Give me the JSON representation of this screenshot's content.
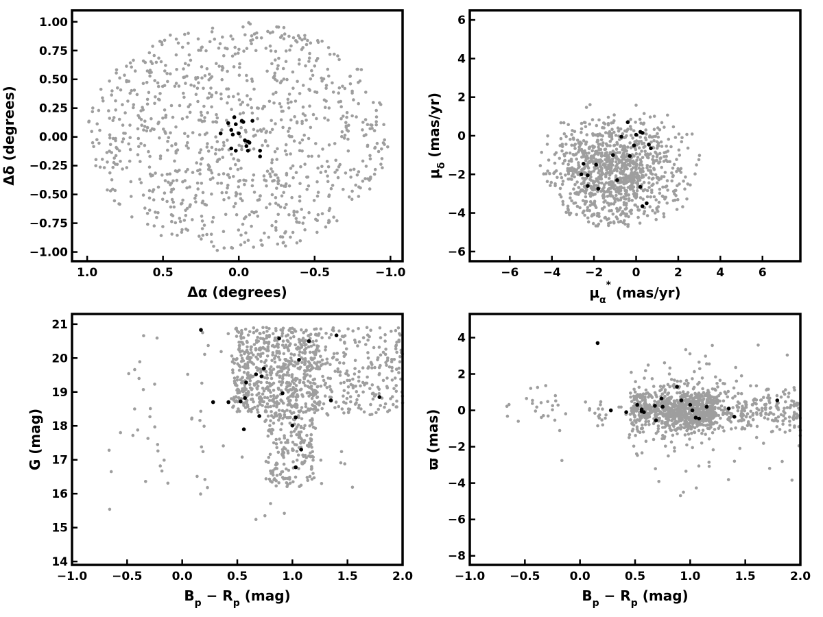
{
  "colors": {
    "field": "#9e9e9e",
    "members": "#000000"
  },
  "chart_data": [
    {
      "type": "scatter",
      "id": "sky",
      "xlabel": "Δα (degrees)",
      "ylabel": "Δδ (degrees)",
      "xlim": [
        1.1,
        -1.08
      ],
      "ylim": [
        -1.08,
        1.1
      ],
      "xticks": [
        "1.0",
        "0.5",
        "0.0",
        "−0.5",
        "−1.0"
      ],
      "xtick_values": [
        1.0,
        0.5,
        0.0,
        -0.5,
        -1.0
      ],
      "yticks": [
        "−1.00",
        "−0.75",
        "−0.50",
        "−0.25",
        "0.00",
        "0.25",
        "0.50",
        "0.75",
        "1.00"
      ],
      "ytick_values": [
        -1.0,
        -0.75,
        -0.5,
        -0.25,
        0.0,
        0.25,
        0.5,
        0.75,
        1.0
      ],
      "grid": false,
      "series": [
        {
          "role": "field",
          "color": "#9e9e9e",
          "points": []
        },
        {
          "role": "members",
          "color": "#000000",
          "points": [
            [
              0.12,
              0.03
            ],
            [
              0.07,
              0.12
            ],
            [
              0.05,
              0.06
            ],
            [
              0.04,
              0.02
            ],
            [
              0.03,
              0.17
            ],
            [
              0.02,
              0.11
            ],
            [
              0.0,
              0.03
            ],
            [
              -0.02,
              0.14
            ],
            [
              -0.03,
              0.13
            ],
            [
              -0.04,
              -0.03
            ],
            [
              -0.05,
              -0.08
            ],
            [
              -0.06,
              -0.12
            ],
            [
              -0.07,
              -0.05
            ],
            [
              -0.09,
              0.14
            ],
            [
              -0.14,
              -0.12
            ],
            [
              -0.14,
              -0.17
            ],
            [
              0.05,
              -0.1
            ],
            [
              0.02,
              -0.12
            ],
            [
              -0.06,
              -0.04
            ]
          ]
        }
      ]
    },
    {
      "type": "scatter",
      "id": "proper-motion",
      "xlabel": "μ*α (mas/yr)",
      "ylabel": "μδ (mas/yr)",
      "xlim": [
        -7.9,
        7.8
      ],
      "ylim": [
        -6.5,
        6.5
      ],
      "xticks": [
        "−6",
        "−4",
        "−2",
        "0",
        "2",
        "4",
        "6"
      ],
      "xtick_values": [
        -6,
        -4,
        -2,
        0,
        2,
        4,
        6
      ],
      "yticks": [
        "−6",
        "−4",
        "−2",
        "0",
        "2",
        "4",
        "6"
      ],
      "ytick_values": [
        -6,
        -4,
        -2,
        0,
        2,
        4,
        6
      ],
      "grid": false,
      "series": [
        {
          "role": "field",
          "color": "#9e9e9e",
          "points": []
        },
        {
          "role": "members",
          "color": "#000000",
          "points": [
            [
              -0.4,
              0.7
            ],
            [
              0.2,
              0.2
            ],
            [
              0.3,
              0.15
            ],
            [
              -0.7,
              -0.05
            ],
            [
              0.0,
              0.05
            ],
            [
              -0.1,
              -0.5
            ],
            [
              0.6,
              -0.45
            ],
            [
              0.7,
              -0.65
            ],
            [
              -1.1,
              -1.0
            ],
            [
              -0.3,
              -1.05
            ],
            [
              -2.5,
              -1.45
            ],
            [
              -2.6,
              -2.0
            ],
            [
              -2.3,
              -2.05
            ],
            [
              -1.9,
              -1.5
            ],
            [
              -2.3,
              -2.6
            ],
            [
              -1.8,
              -2.75
            ],
            [
              -0.9,
              -2.3
            ],
            [
              0.2,
              -2.65
            ],
            [
              0.5,
              -3.5
            ],
            [
              0.3,
              -3.65
            ]
          ]
        }
      ]
    },
    {
      "type": "scatter",
      "id": "cmd",
      "xlabel": "Bp − Rp (mag)",
      "ylabel": "G (mag)",
      "xlim": [
        -1.0,
        2.0
      ],
      "ylim": [
        13.9,
        21.3
      ],
      "xticks": [
        "−1.0",
        "−0.5",
        "0.0",
        "0.5",
        "1.0",
        "1.5",
        "2.0"
      ],
      "xtick_values": [
        -1.0,
        -0.5,
        0.0,
        0.5,
        1.0,
        1.5,
        2.0
      ],
      "yticks": [
        "14",
        "15",
        "16",
        "17",
        "18",
        "19",
        "20",
        "21"
      ],
      "ytick_values": [
        14,
        15,
        16,
        17,
        18,
        19,
        20,
        21
      ],
      "grid": false,
      "series": [
        {
          "role": "field",
          "color": "#9e9e9e",
          "points": []
        },
        {
          "role": "members",
          "color": "#000000",
          "points": [
            [
              0.17,
              20.83
            ],
            [
              0.88,
              20.58
            ],
            [
              1.15,
              20.5
            ],
            [
              1.4,
              20.67
            ],
            [
              1.06,
              19.95
            ],
            [
              0.74,
              19.69
            ],
            [
              0.67,
              19.52
            ],
            [
              0.72,
              19.46
            ],
            [
              0.58,
              19.28
            ],
            [
              0.91,
              18.96
            ],
            [
              0.57,
              18.82
            ],
            [
              0.53,
              18.72
            ],
            [
              0.42,
              18.7
            ],
            [
              0.28,
              18.7
            ],
            [
              1.35,
              18.75
            ],
            [
              1.79,
              18.85
            ],
            [
              0.7,
              18.29
            ],
            [
              1.03,
              18.25
            ],
            [
              1.0,
              18.01
            ],
            [
              0.56,
              17.9
            ],
            [
              1.08,
              17.3
            ],
            [
              1.03,
              16.78
            ]
          ]
        }
      ]
    },
    {
      "type": "scatter",
      "id": "parallax",
      "xlabel": "Bp − Rp (mag)",
      "ylabel": "ϖ (mas)",
      "xlim": [
        -1.0,
        2.0
      ],
      "ylim": [
        -8.5,
        5.3
      ],
      "xticks": [
        "−1.0",
        "−0.5",
        "0.0",
        "0.5",
        "1.0",
        "1.5",
        "2.0"
      ],
      "xtick_values": [
        -1.0,
        -0.5,
        0.0,
        0.5,
        1.0,
        1.5,
        2.0
      ],
      "yticks": [
        "−8",
        "−6",
        "−4",
        "−2",
        "0",
        "2",
        "4"
      ],
      "ytick_values": [
        -8,
        -6,
        -4,
        -2,
        0,
        2,
        4
      ],
      "grid": false,
      "series": [
        {
          "role": "field",
          "color": "#9e9e9e",
          "points": []
        },
        {
          "role": "members",
          "color": "#000000",
          "points": [
            [
              0.16,
              3.7
            ],
            [
              0.28,
              0.0
            ],
            [
              0.42,
              -0.1
            ],
            [
              0.52,
              0.3
            ],
            [
              0.56,
              0.05
            ],
            [
              0.56,
              -0.05
            ],
            [
              0.58,
              -0.1
            ],
            [
              0.68,
              0.25
            ],
            [
              0.69,
              -0.55
            ],
            [
              0.74,
              0.65
            ],
            [
              0.75,
              0.2
            ],
            [
              0.88,
              1.3
            ],
            [
              0.92,
              0.55
            ],
            [
              1.0,
              0.3
            ],
            [
              1.02,
              0.0
            ],
            [
              1.05,
              -0.4
            ],
            [
              1.08,
              -0.45
            ],
            [
              1.15,
              0.2
            ],
            [
              1.35,
              0.1
            ],
            [
              1.4,
              -0.35
            ],
            [
              1.79,
              0.55
            ]
          ]
        }
      ]
    }
  ]
}
